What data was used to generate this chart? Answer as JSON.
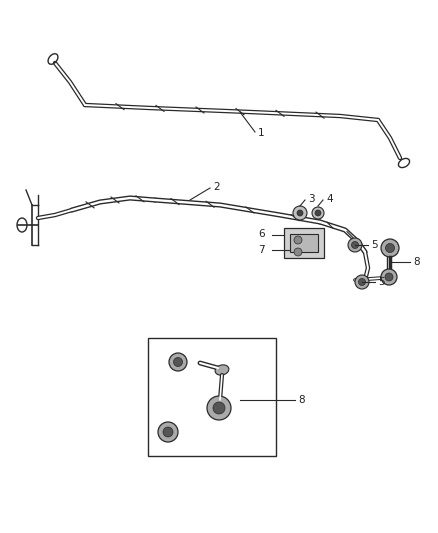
{
  "bg_color": "#ffffff",
  "line_color": "#2a2a2a",
  "label_color": "#222222",
  "figsize": [
    4.38,
    5.33
  ],
  "dpi": 100
}
